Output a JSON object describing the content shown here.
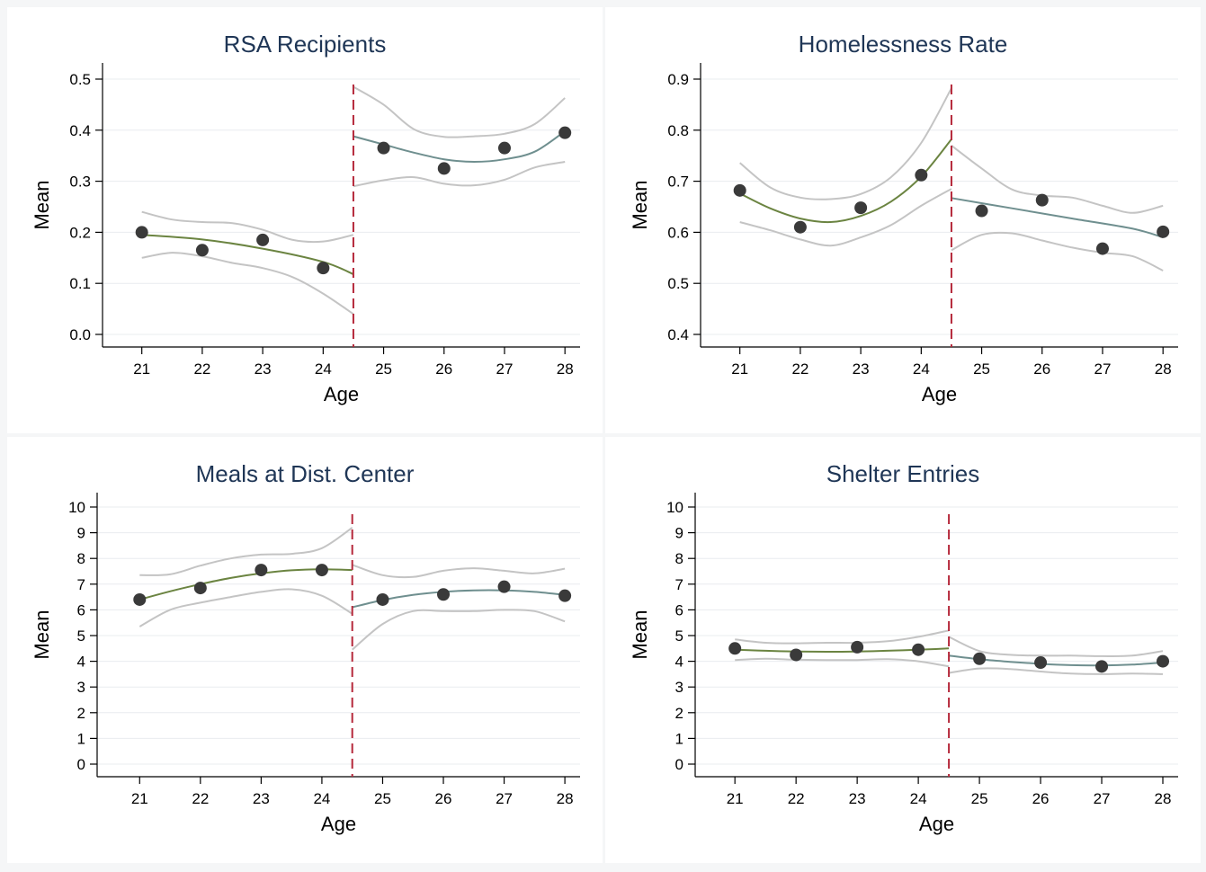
{
  "colors": {
    "background": "#f5f6f7",
    "panel": "#ffffff",
    "title": "#1f3656",
    "fit_left": "#6b8441",
    "fit_right": "#6f8f8f",
    "ci": "#c4c4c4",
    "points": "#3a3a3a",
    "cutoff": "#b5283a"
  },
  "chart_data": [
    {
      "type": "scatter",
      "title": "RSA Recipients",
      "xlabel": "Age",
      "ylabel": "Mean",
      "x_ticks": [
        "21",
        "22",
        "23",
        "24",
        "25",
        "26",
        "27",
        "28"
      ],
      "y_ticks": [
        "0.0",
        "0.1",
        "0.2",
        "0.3",
        "0.4",
        "0.5"
      ],
      "xlim": [
        20.35,
        28.25
      ],
      "ylim": [
        0.0,
        0.5
      ],
      "cutoff": 24.5,
      "grid": true,
      "points": [
        {
          "x": 21,
          "y": 0.2
        },
        {
          "x": 22,
          "y": 0.165
        },
        {
          "x": 23,
          "y": 0.185
        },
        {
          "x": 24,
          "y": 0.13
        },
        {
          "x": 25,
          "y": 0.365
        },
        {
          "x": 26,
          "y": 0.325
        },
        {
          "x": 27,
          "y": 0.365
        },
        {
          "x": 28,
          "y": 0.395
        }
      ],
      "fit_left": [
        [
          21.0,
          0.195
        ],
        [
          22.0,
          0.186
        ],
        [
          23.0,
          0.168
        ],
        [
          24.0,
          0.142
        ],
        [
          24.5,
          0.118
        ]
      ],
      "ci_left_upper": [
        [
          21.0,
          0.24
        ],
        [
          21.5,
          0.225
        ],
        [
          22.0,
          0.22
        ],
        [
          22.5,
          0.218
        ],
        [
          23.0,
          0.205
        ],
        [
          23.5,
          0.185
        ],
        [
          24.0,
          0.182
        ],
        [
          24.5,
          0.195
        ]
      ],
      "ci_left_lower": [
        [
          21.0,
          0.15
        ],
        [
          21.5,
          0.16
        ],
        [
          22.0,
          0.153
        ],
        [
          22.5,
          0.14
        ],
        [
          23.0,
          0.13
        ],
        [
          23.5,
          0.112
        ],
        [
          24.0,
          0.08
        ],
        [
          24.5,
          0.04
        ]
      ],
      "fit_right": [
        [
          24.5,
          0.388
        ],
        [
          25.0,
          0.372
        ],
        [
          25.5,
          0.356
        ],
        [
          26.0,
          0.343
        ],
        [
          26.5,
          0.338
        ],
        [
          27.0,
          0.343
        ],
        [
          27.5,
          0.358
        ],
        [
          28.0,
          0.398
        ]
      ],
      "ci_right_upper": [
        [
          24.5,
          0.485
        ],
        [
          25.0,
          0.45
        ],
        [
          25.5,
          0.402
        ],
        [
          26.0,
          0.387
        ],
        [
          26.5,
          0.388
        ],
        [
          27.0,
          0.393
        ],
        [
          27.5,
          0.412
        ],
        [
          28.0,
          0.463
        ]
      ],
      "ci_right_lower": [
        [
          24.5,
          0.29
        ],
        [
          25.0,
          0.302
        ],
        [
          25.5,
          0.308
        ],
        [
          26.0,
          0.295
        ],
        [
          26.5,
          0.292
        ],
        [
          27.0,
          0.303
        ],
        [
          27.5,
          0.327
        ],
        [
          28.0,
          0.338
        ]
      ]
    },
    {
      "type": "scatter",
      "title": "Homelessness Rate",
      "xlabel": "Age",
      "ylabel": "Mean",
      "x_ticks": [
        "21",
        "22",
        "23",
        "24",
        "25",
        "26",
        "27",
        "28"
      ],
      "y_ticks": [
        "0.4",
        "0.5",
        "0.6",
        "0.7",
        "0.8",
        "0.9"
      ],
      "xlim": [
        20.35,
        28.25
      ],
      "ylim": [
        0.4,
        0.9
      ],
      "cutoff": 24.5,
      "grid": true,
      "points": [
        {
          "x": 21,
          "y": 0.682
        },
        {
          "x": 22,
          "y": 0.61
        },
        {
          "x": 23,
          "y": 0.648
        },
        {
          "x": 24,
          "y": 0.712
        },
        {
          "x": 25,
          "y": 0.642
        },
        {
          "x": 26,
          "y": 0.663
        },
        {
          "x": 27,
          "y": 0.568
        },
        {
          "x": 28,
          "y": 0.601
        }
      ],
      "fit_left": [
        [
          21.0,
          0.676
        ],
        [
          21.5,
          0.647
        ],
        [
          22.0,
          0.627
        ],
        [
          22.5,
          0.62
        ],
        [
          23.0,
          0.632
        ],
        [
          23.5,
          0.66
        ],
        [
          24.0,
          0.709
        ],
        [
          24.5,
          0.782
        ]
      ],
      "ci_left_upper": [
        [
          21.0,
          0.736
        ],
        [
          21.5,
          0.688
        ],
        [
          22.0,
          0.668
        ],
        [
          22.5,
          0.665
        ],
        [
          23.0,
          0.675
        ],
        [
          23.5,
          0.708
        ],
        [
          24.0,
          0.775
        ],
        [
          24.5,
          0.882
        ]
      ],
      "ci_left_lower": [
        [
          21.0,
          0.62
        ],
        [
          21.5,
          0.604
        ],
        [
          22.0,
          0.586
        ],
        [
          22.5,
          0.574
        ],
        [
          23.0,
          0.59
        ],
        [
          23.5,
          0.614
        ],
        [
          24.0,
          0.652
        ],
        [
          24.5,
          0.685
        ]
      ],
      "fit_right": [
        [
          24.5,
          0.667
        ],
        [
          25.5,
          0.647
        ],
        [
          26.5,
          0.627
        ],
        [
          27.5,
          0.607
        ],
        [
          28.0,
          0.59
        ]
      ],
      "ci_right_upper": [
        [
          24.5,
          0.77
        ],
        [
          25.0,
          0.725
        ],
        [
          25.5,
          0.684
        ],
        [
          26.0,
          0.672
        ],
        [
          26.5,
          0.668
        ],
        [
          27.0,
          0.652
        ],
        [
          27.5,
          0.638
        ],
        [
          28.0,
          0.652
        ]
      ],
      "ci_right_lower": [
        [
          24.5,
          0.565
        ],
        [
          25.0,
          0.595
        ],
        [
          25.5,
          0.598
        ],
        [
          26.0,
          0.584
        ],
        [
          26.5,
          0.57
        ],
        [
          27.0,
          0.56
        ],
        [
          27.5,
          0.553
        ],
        [
          28.0,
          0.525
        ]
      ]
    },
    {
      "type": "scatter",
      "title": "Meals at Dist. Center",
      "xlabel": "Age",
      "ylabel": "Mean",
      "x_ticks": [
        "21",
        "22",
        "23",
        "24",
        "25",
        "26",
        "27",
        "28"
      ],
      "y_ticks": [
        "0",
        "1",
        "2",
        "3",
        "4",
        "5",
        "6",
        "7",
        "8",
        "9",
        "10"
      ],
      "xlim": [
        20.3,
        28.25
      ],
      "ylim": [
        0,
        10
      ],
      "cutoff": 24.5,
      "grid": true,
      "points": [
        {
          "x": 21,
          "y": 6.4
        },
        {
          "x": 22,
          "y": 6.85
        },
        {
          "x": 23,
          "y": 7.55
        },
        {
          "x": 24,
          "y": 7.55
        },
        {
          "x": 25,
          "y": 6.4
        },
        {
          "x": 26,
          "y": 6.6
        },
        {
          "x": 27,
          "y": 6.9
        },
        {
          "x": 28,
          "y": 6.55
        }
      ],
      "fit_left": [
        [
          21.0,
          6.4
        ],
        [
          21.5,
          6.72
        ],
        [
          22.0,
          7.0
        ],
        [
          22.5,
          7.24
        ],
        [
          23.0,
          7.42
        ],
        [
          23.5,
          7.54
        ],
        [
          24.0,
          7.58
        ],
        [
          24.5,
          7.55
        ]
      ],
      "ci_left_upper": [
        [
          21.0,
          7.35
        ],
        [
          21.5,
          7.38
        ],
        [
          22.0,
          7.72
        ],
        [
          22.5,
          8.0
        ],
        [
          23.0,
          8.15
        ],
        [
          23.5,
          8.18
        ],
        [
          24.0,
          8.4
        ],
        [
          24.5,
          9.2
        ]
      ],
      "ci_left_lower": [
        [
          21.0,
          5.35
        ],
        [
          21.5,
          6.0
        ],
        [
          22.0,
          6.28
        ],
        [
          22.5,
          6.5
        ],
        [
          23.0,
          6.7
        ],
        [
          23.5,
          6.8
        ],
        [
          24.0,
          6.55
        ],
        [
          24.5,
          5.85
        ]
      ],
      "fit_right": [
        [
          24.5,
          6.1
        ],
        [
          25.0,
          6.38
        ],
        [
          25.5,
          6.58
        ],
        [
          26.0,
          6.7
        ],
        [
          26.5,
          6.76
        ],
        [
          27.0,
          6.76
        ],
        [
          27.5,
          6.7
        ],
        [
          28.0,
          6.58
        ]
      ],
      "ci_right_upper": [
        [
          24.5,
          7.75
        ],
        [
          25.0,
          7.35
        ],
        [
          25.5,
          7.28
        ],
        [
          26.0,
          7.52
        ],
        [
          26.5,
          7.62
        ],
        [
          27.0,
          7.52
        ],
        [
          27.5,
          7.42
        ],
        [
          28.0,
          7.6
        ]
      ],
      "ci_right_lower": [
        [
          24.5,
          4.45
        ],
        [
          25.0,
          5.45
        ],
        [
          25.5,
          5.95
        ],
        [
          26.0,
          5.95
        ],
        [
          26.5,
          5.95
        ],
        [
          27.0,
          6.0
        ],
        [
          27.5,
          5.95
        ],
        [
          28.0,
          5.55
        ]
      ]
    },
    {
      "type": "scatter",
      "title": "Shelter Entries",
      "xlabel": "Age",
      "ylabel": "Mean",
      "x_ticks": [
        "21",
        "22",
        "23",
        "24",
        "25",
        "26",
        "27",
        "28"
      ],
      "y_ticks": [
        "0",
        "1",
        "2",
        "3",
        "4",
        "5",
        "6",
        "7",
        "8",
        "9",
        "10"
      ],
      "xlim": [
        20.35,
        28.25
      ],
      "ylim": [
        0,
        10
      ],
      "cutoff": 24.5,
      "grid": true,
      "points": [
        {
          "x": 21,
          "y": 4.5
        },
        {
          "x": 22,
          "y": 4.25
        },
        {
          "x": 23,
          "y": 4.55
        },
        {
          "x": 24,
          "y": 4.45
        },
        {
          "x": 25,
          "y": 4.1
        },
        {
          "x": 26,
          "y": 3.95
        },
        {
          "x": 27,
          "y": 3.8
        },
        {
          "x": 28,
          "y": 4.0
        }
      ],
      "fit_left": [
        [
          21.0,
          4.45
        ],
        [
          22.0,
          4.38
        ],
        [
          23.0,
          4.38
        ],
        [
          24.0,
          4.45
        ],
        [
          24.5,
          4.5
        ]
      ],
      "ci_left_upper": [
        [
          21.0,
          4.85
        ],
        [
          21.5,
          4.72
        ],
        [
          22.0,
          4.7
        ],
        [
          22.5,
          4.72
        ],
        [
          23.0,
          4.72
        ],
        [
          23.5,
          4.78
        ],
        [
          24.0,
          4.95
        ],
        [
          24.5,
          5.2
        ]
      ],
      "ci_left_lower": [
        [
          21.0,
          4.05
        ],
        [
          21.5,
          4.1
        ],
        [
          22.0,
          4.06
        ],
        [
          22.5,
          4.05
        ],
        [
          23.0,
          4.05
        ],
        [
          23.5,
          4.08
        ],
        [
          24.0,
          4.0
        ],
        [
          24.5,
          3.8
        ]
      ],
      "fit_right": [
        [
          24.5,
          4.22
        ],
        [
          25.0,
          4.08
        ],
        [
          25.5,
          3.98
        ],
        [
          26.0,
          3.9
        ],
        [
          26.5,
          3.85
        ],
        [
          27.0,
          3.84
        ],
        [
          27.5,
          3.87
        ],
        [
          28.0,
          3.95
        ]
      ],
      "ci_right_upper": [
        [
          24.5,
          4.95
        ],
        [
          25.0,
          4.4
        ],
        [
          25.5,
          4.25
        ],
        [
          26.0,
          4.22
        ],
        [
          26.5,
          4.22
        ],
        [
          27.0,
          4.2
        ],
        [
          27.5,
          4.22
        ],
        [
          28.0,
          4.4
        ]
      ],
      "ci_right_lower": [
        [
          24.5,
          3.55
        ],
        [
          25.0,
          3.72
        ],
        [
          25.5,
          3.7
        ],
        [
          26.0,
          3.6
        ],
        [
          26.5,
          3.52
        ],
        [
          27.0,
          3.5
        ],
        [
          27.5,
          3.52
        ],
        [
          28.0,
          3.5
        ]
      ]
    }
  ]
}
